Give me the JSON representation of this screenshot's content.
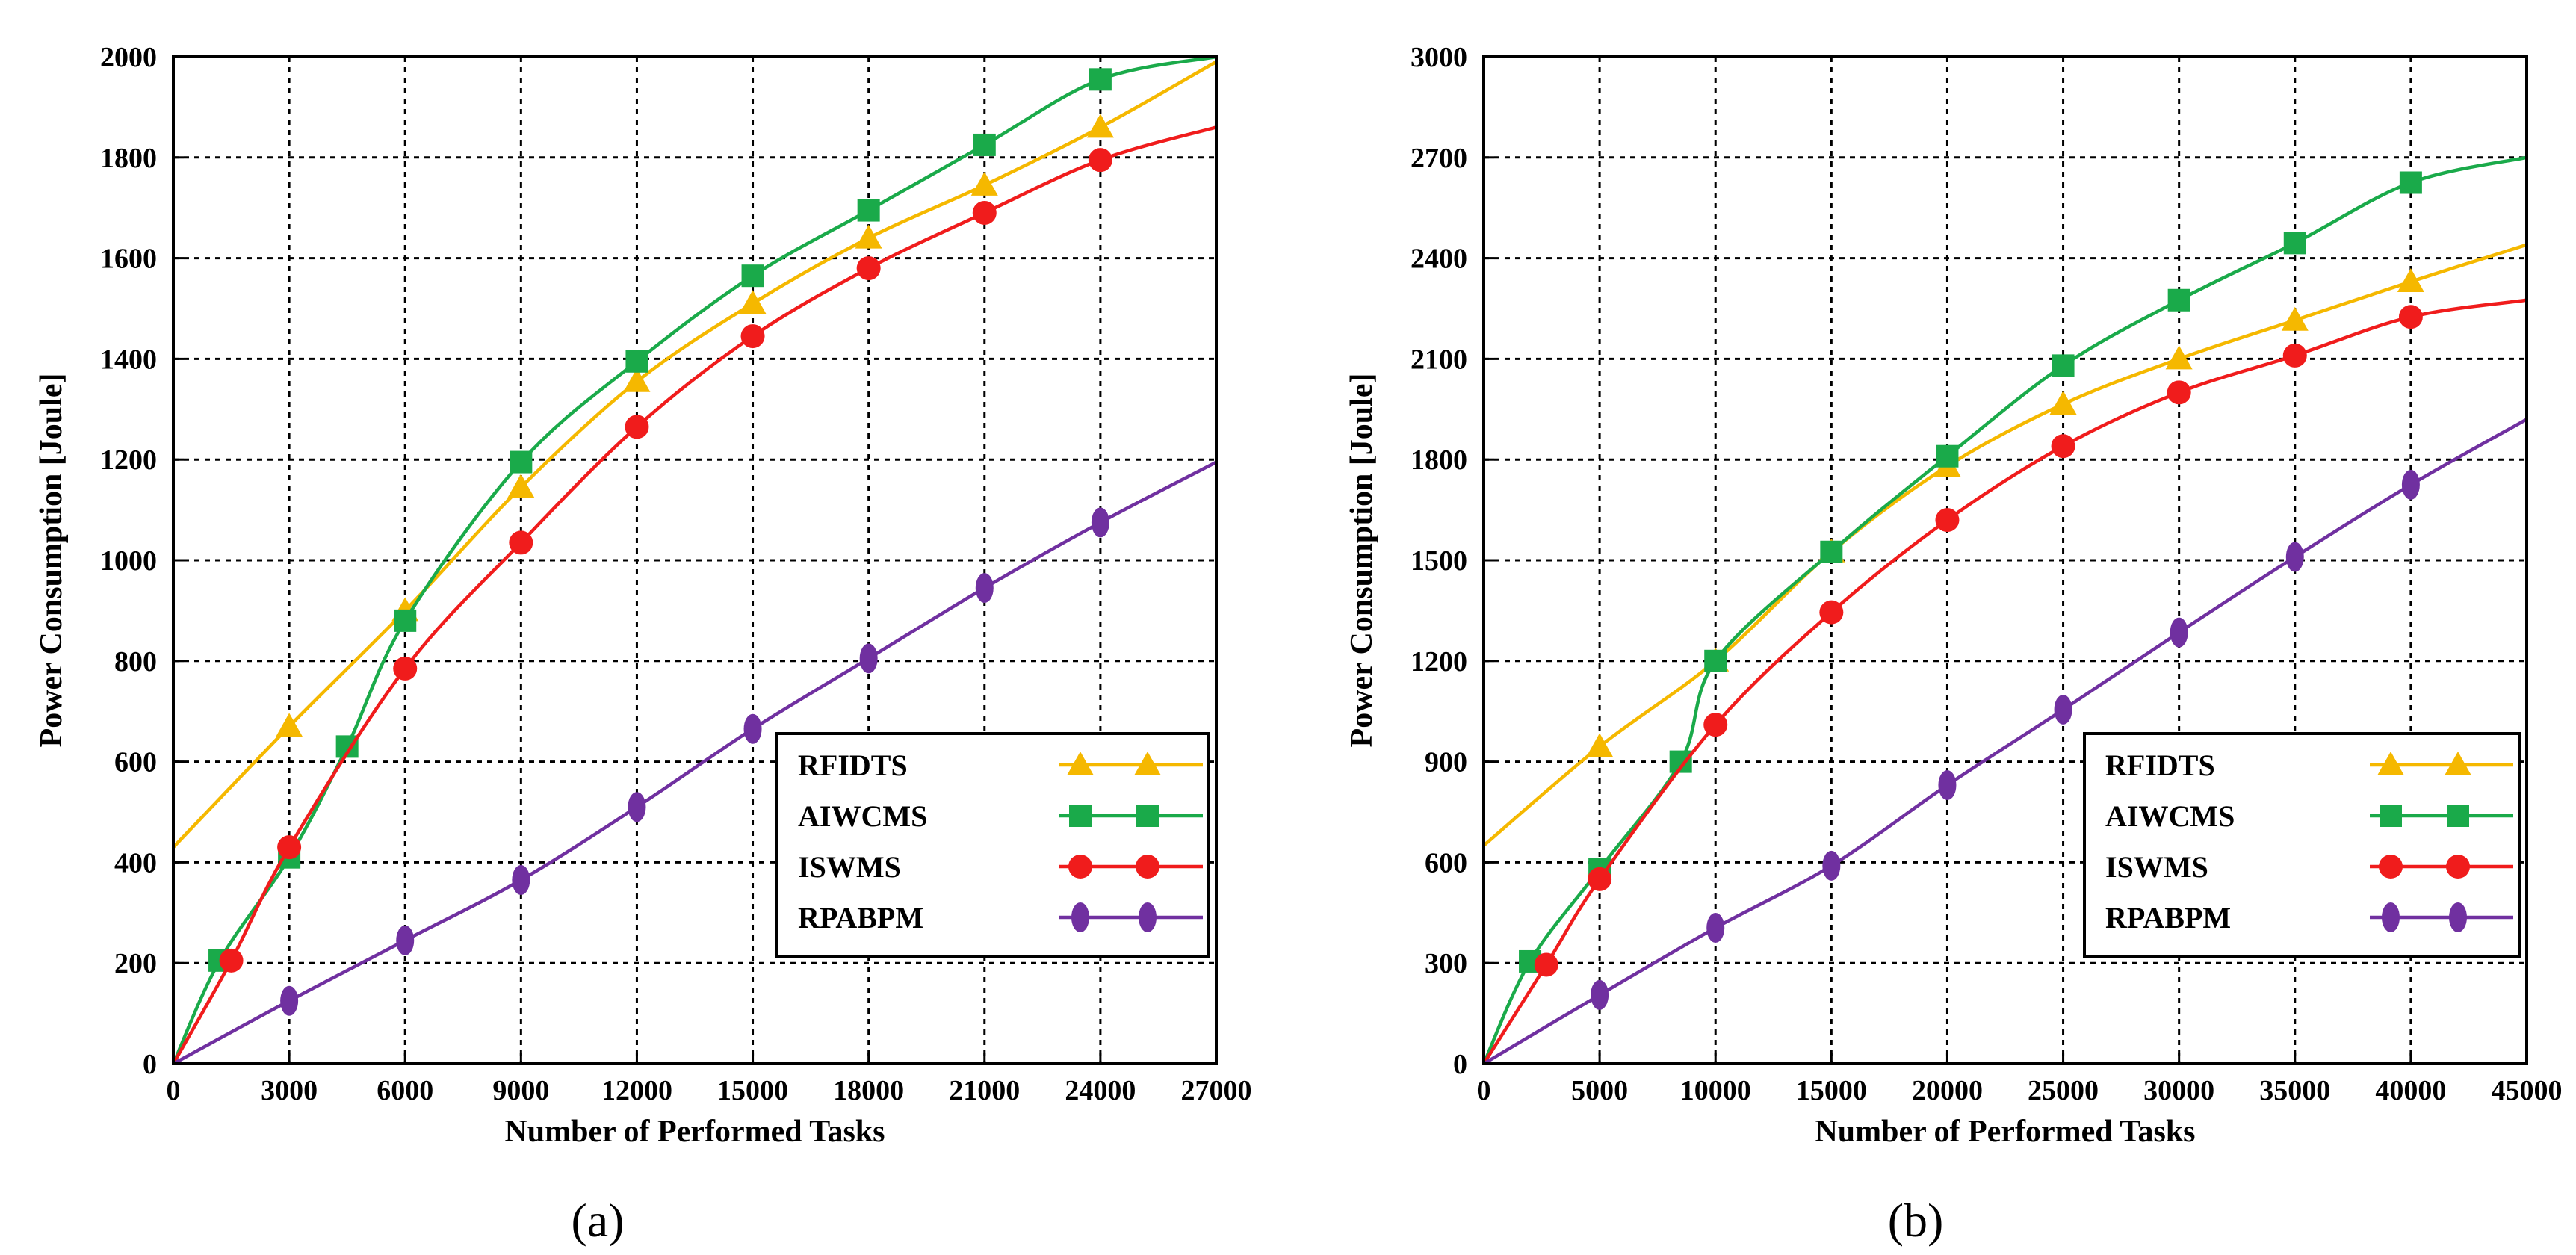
{
  "chart_data": [
    {
      "type": "line",
      "panel_label": "(a)",
      "xlabel": "Number of Performed Tasks",
      "ylabel": "Power Consumption [Joule]",
      "xlim": [
        0,
        27000
      ],
      "ylim": [
        0,
        2000
      ],
      "x_ticks": [
        0,
        3000,
        6000,
        9000,
        12000,
        15000,
        18000,
        21000,
        24000,
        27000
      ],
      "y_ticks": [
        0,
        200,
        400,
        600,
        800,
        1000,
        1200,
        1400,
        1600,
        1800,
        2000
      ],
      "grid": true,
      "legend_position": "bottom-right",
      "series": [
        {
          "name": "RFIDTS",
          "color": "#f5b800",
          "marker": "triangle",
          "curve": [
            [
              0,
              430
            ],
            [
              3000,
              670
            ],
            [
              6000,
              900
            ],
            [
              9000,
              1145
            ],
            [
              12000,
              1355
            ],
            [
              15000,
              1510
            ],
            [
              18000,
              1640
            ],
            [
              21000,
              1745
            ],
            [
              24000,
              1860
            ],
            [
              27000,
              1990
            ]
          ],
          "markers": [
            [
              3000,
              670
            ],
            [
              6000,
              900
            ],
            [
              9000,
              1145
            ],
            [
              12000,
              1355
            ],
            [
              15000,
              1510
            ],
            [
              18000,
              1640
            ],
            [
              21000,
              1745
            ],
            [
              24000,
              1860
            ]
          ]
        },
        {
          "name": "AIWCMS",
          "color": "#1aaa4a",
          "marker": "square",
          "curve": [
            [
              0,
              0
            ],
            [
              1200,
              205
            ],
            [
              3000,
              410
            ],
            [
              4500,
              630
            ],
            [
              6000,
              880
            ],
            [
              9000,
              1195
            ],
            [
              12000,
              1395
            ],
            [
              15000,
              1565
            ],
            [
              18000,
              1695
            ],
            [
              21000,
              1825
            ],
            [
              24000,
              1955
            ],
            [
              27000,
              2000
            ]
          ],
          "markers": [
            [
              1200,
              205
            ],
            [
              3000,
              410
            ],
            [
              4500,
              630
            ],
            [
              6000,
              880
            ],
            [
              9000,
              1195
            ],
            [
              12000,
              1395
            ],
            [
              15000,
              1565
            ],
            [
              18000,
              1695
            ],
            [
              21000,
              1825
            ],
            [
              24000,
              1955
            ]
          ]
        },
        {
          "name": "ISWMS",
          "color": "#f01c1c",
          "marker": "circle",
          "curve": [
            [
              0,
              0
            ],
            [
              1500,
              205
            ],
            [
              3000,
              430
            ],
            [
              6000,
              785
            ],
            [
              9000,
              1035
            ],
            [
              12000,
              1265
            ],
            [
              15000,
              1445
            ],
            [
              18000,
              1580
            ],
            [
              21000,
              1690
            ],
            [
              24000,
              1795
            ],
            [
              27000,
              1860
            ]
          ],
          "markers": [
            [
              1500,
              205
            ],
            [
              3000,
              430
            ],
            [
              6000,
              785
            ],
            [
              9000,
              1035
            ],
            [
              12000,
              1265
            ],
            [
              15000,
              1445
            ],
            [
              18000,
              1580
            ],
            [
              21000,
              1690
            ],
            [
              24000,
              1795
            ]
          ]
        },
        {
          "name": "RPABPM",
          "color": "#7030a0",
          "marker": "ellipse",
          "curve": [
            [
              0,
              0
            ],
            [
              3000,
              125
            ],
            [
              6000,
              245
            ],
            [
              9000,
              365
            ],
            [
              12000,
              510
            ],
            [
              15000,
              665
            ],
            [
              18000,
              805
            ],
            [
              21000,
              945
            ],
            [
              24000,
              1075
            ],
            [
              27000,
              1195
            ]
          ],
          "markers": [
            [
              3000,
              125
            ],
            [
              6000,
              245
            ],
            [
              9000,
              365
            ],
            [
              12000,
              510
            ],
            [
              15000,
              665
            ],
            [
              18000,
              805
            ],
            [
              21000,
              945
            ],
            [
              24000,
              1075
            ]
          ]
        }
      ]
    },
    {
      "type": "line",
      "panel_label": "(b)",
      "xlabel": "Number of Performed Tasks",
      "ylabel": "Power Consumption [Joule]",
      "xlim": [
        0,
        45000
      ],
      "ylim": [
        0,
        3000
      ],
      "x_ticks": [
        0,
        5000,
        10000,
        15000,
        20000,
        25000,
        30000,
        35000,
        40000,
        45000
      ],
      "y_ticks": [
        0,
        300,
        600,
        900,
        1200,
        1500,
        1800,
        2100,
        2400,
        2700,
        3000
      ],
      "grid": true,
      "legend_position": "bottom-right",
      "series": [
        {
          "name": "RFIDTS",
          "color": "#f5b800",
          "marker": "triangle",
          "curve": [
            [
              0,
              650
            ],
            [
              5000,
              945
            ],
            [
              10000,
              1200
            ],
            [
              15000,
              1525
            ],
            [
              20000,
              1780
            ],
            [
              25000,
              1965
            ],
            [
              30000,
              2100
            ],
            [
              35000,
              2215
            ],
            [
              40000,
              2330
            ],
            [
              45000,
              2440
            ]
          ],
          "markers": [
            [
              5000,
              945
            ],
            [
              10000,
              1200
            ],
            [
              15000,
              1525
            ],
            [
              20000,
              1780
            ],
            [
              25000,
              1965
            ],
            [
              30000,
              2100
            ],
            [
              35000,
              2215
            ],
            [
              40000,
              2330
            ]
          ]
        },
        {
          "name": "AIWCMS",
          "color": "#1aaa4a",
          "marker": "square",
          "curve": [
            [
              0,
              0
            ],
            [
              2000,
              305
            ],
            [
              5000,
              580
            ],
            [
              8500,
              900
            ],
            [
              10000,
              1200
            ],
            [
              15000,
              1525
            ],
            [
              20000,
              1810
            ],
            [
              25000,
              2080
            ],
            [
              30000,
              2275
            ],
            [
              35000,
              2445
            ],
            [
              40000,
              2625
            ],
            [
              45000,
              2700
            ]
          ],
          "markers": [
            [
              2000,
              305
            ],
            [
              5000,
              580
            ],
            [
              8500,
              900
            ],
            [
              10000,
              1200
            ],
            [
              15000,
              1525
            ],
            [
              20000,
              1810
            ],
            [
              25000,
              2080
            ],
            [
              30000,
              2275
            ],
            [
              35000,
              2445
            ],
            [
              40000,
              2625
            ]
          ]
        },
        {
          "name": "ISWMS",
          "color": "#f01c1c",
          "marker": "circle",
          "curve": [
            [
              0,
              0
            ],
            [
              2700,
              295
            ],
            [
              5000,
              550
            ],
            [
              10000,
              1010
            ],
            [
              15000,
              1345
            ],
            [
              20000,
              1620
            ],
            [
              25000,
              1840
            ],
            [
              30000,
              2000
            ],
            [
              35000,
              2110
            ],
            [
              40000,
              2225
            ],
            [
              45000,
              2275
            ]
          ],
          "markers": [
            [
              2700,
              295
            ],
            [
              5000,
              550
            ],
            [
              10000,
              1010
            ],
            [
              15000,
              1345
            ],
            [
              20000,
              1620
            ],
            [
              25000,
              1840
            ],
            [
              30000,
              2000
            ],
            [
              35000,
              2110
            ],
            [
              40000,
              2225
            ]
          ]
        },
        {
          "name": "RPABPM",
          "color": "#7030a0",
          "marker": "ellipse",
          "curve": [
            [
              0,
              0
            ],
            [
              5000,
              205
            ],
            [
              10000,
              405
            ],
            [
              15000,
              590
            ],
            [
              20000,
              830
            ],
            [
              25000,
              1055
            ],
            [
              30000,
              1285
            ],
            [
              35000,
              1510
            ],
            [
              40000,
              1725
            ],
            [
              45000,
              1920
            ]
          ],
          "markers": [
            [
              5000,
              205
            ],
            [
              10000,
              405
            ],
            [
              15000,
              590
            ],
            [
              20000,
              830
            ],
            [
              25000,
              1055
            ],
            [
              30000,
              1285
            ],
            [
              35000,
              1510
            ],
            [
              40000,
              1725
            ]
          ]
        }
      ]
    }
  ]
}
